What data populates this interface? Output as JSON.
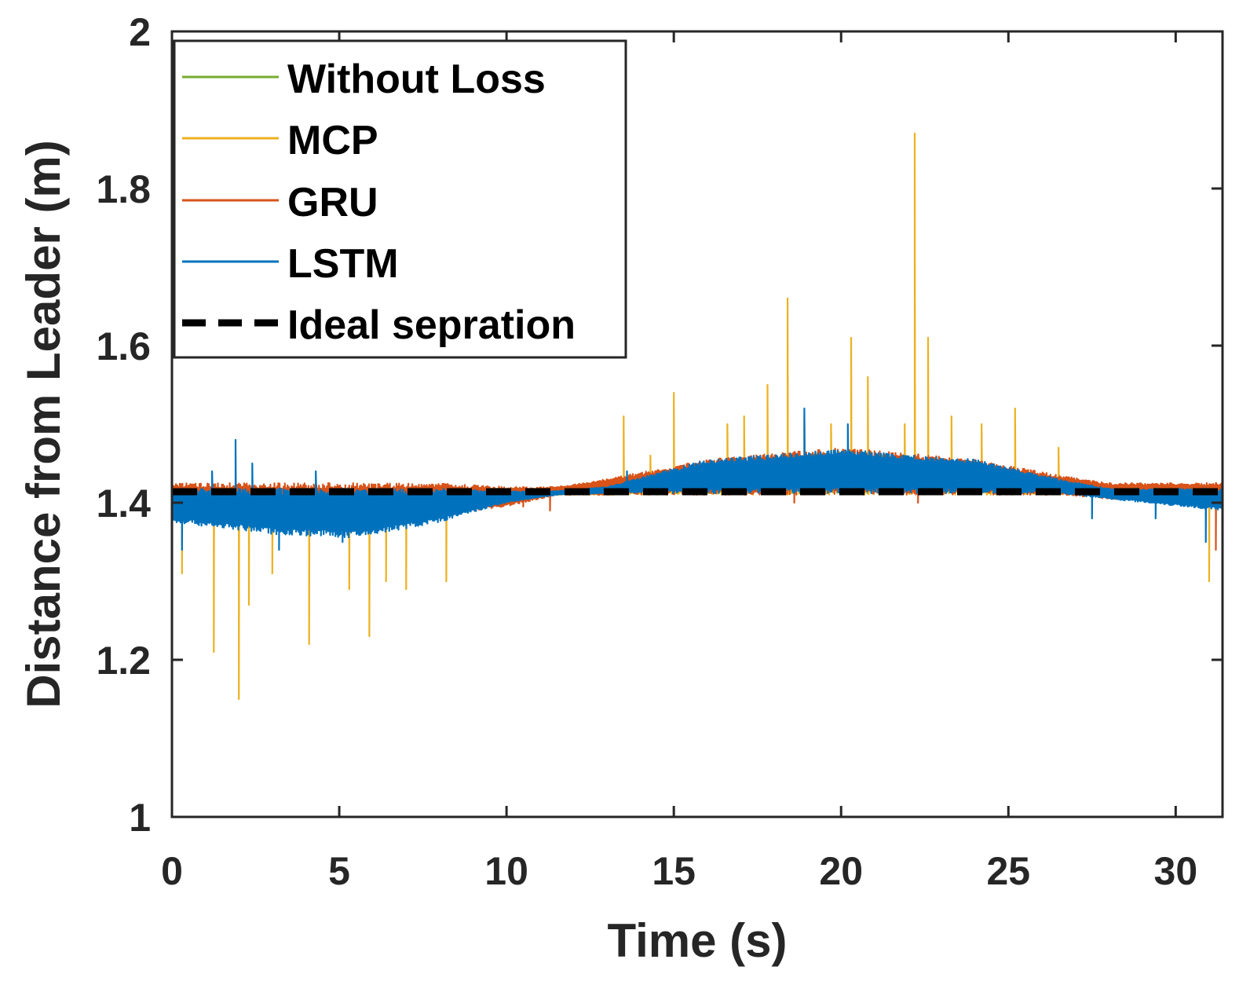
{
  "chart_data": {
    "type": "line",
    "title": "",
    "xlabel": "Time (s)",
    "ylabel": "Distance from Leader (m)",
    "xlim": [
      0,
      31.4
    ],
    "ylim": [
      1,
      2
    ],
    "xticks": [
      "0",
      "5",
      "10",
      "15",
      "20",
      "25",
      "30"
    ],
    "xtick_values": [
      0,
      5,
      10,
      15,
      20,
      25,
      30
    ],
    "yticks": [
      "1",
      "1.2",
      "1.4",
      "1.6",
      "1.8",
      "2"
    ],
    "ytick_values": [
      1,
      1.2,
      1.4,
      1.6,
      1.8,
      2
    ],
    "grid": false,
    "legend_position": "top-left",
    "baseline": 1.414,
    "series": [
      {
        "name": "Without Loss",
        "color": "#77AC30",
        "envelope": {
          "t": [
            0,
            3,
            5.5,
            8,
            10,
            11.5,
            13,
            16,
            20,
            24,
            26.5,
            28,
            31.4
          ],
          "upper": [
            1.418,
            1.418,
            1.418,
            1.418,
            1.418,
            1.418,
            1.42,
            1.44,
            1.455,
            1.44,
            1.425,
            1.42,
            1.418
          ],
          "lower": [
            1.38,
            1.37,
            1.37,
            1.39,
            1.41,
            1.415,
            1.415,
            1.412,
            1.412,
            1.412,
            1.412,
            1.41,
            1.4
          ]
        },
        "spikes": [
          [
            2.0,
            1.37
          ],
          [
            13.5,
            1.43
          ],
          [
            30.9,
            1.38
          ]
        ]
      },
      {
        "name": "MCP",
        "color": "#EDB120",
        "envelope": {
          "t": [
            0,
            3,
            5.5,
            8,
            10,
            11.5,
            13,
            16,
            20,
            24,
            26.5,
            28,
            31.4
          ],
          "upper": [
            1.415,
            1.415,
            1.415,
            1.415,
            1.415,
            1.415,
            1.42,
            1.45,
            1.465,
            1.45,
            1.43,
            1.418,
            1.415
          ],
          "lower": [
            1.385,
            1.375,
            1.37,
            1.385,
            1.405,
            1.41,
            1.41,
            1.41,
            1.41,
            1.41,
            1.41,
            1.41,
            1.405
          ]
        },
        "spikes": [
          [
            0.3,
            1.31
          ],
          [
            1.25,
            1.21
          ],
          [
            2.0,
            1.15
          ],
          [
            2.3,
            1.27
          ],
          [
            3.0,
            1.31
          ],
          [
            4.1,
            1.22
          ],
          [
            5.3,
            1.29
          ],
          [
            5.9,
            1.23
          ],
          [
            6.4,
            1.3
          ],
          [
            7.0,
            1.29
          ],
          [
            8.2,
            1.3
          ],
          [
            13.5,
            1.51
          ],
          [
            14.3,
            1.46
          ],
          [
            15.0,
            1.54
          ],
          [
            16.6,
            1.5
          ],
          [
            17.1,
            1.51
          ],
          [
            17.8,
            1.55
          ],
          [
            18.4,
            1.66
          ],
          [
            18.9,
            1.51
          ],
          [
            19.7,
            1.5
          ],
          [
            20.3,
            1.61
          ],
          [
            20.8,
            1.56
          ],
          [
            21.9,
            1.5
          ],
          [
            22.2,
            1.87
          ],
          [
            22.6,
            1.61
          ],
          [
            23.3,
            1.51
          ],
          [
            24.2,
            1.5
          ],
          [
            25.2,
            1.52
          ],
          [
            26.5,
            1.47
          ],
          [
            31.0,
            1.3
          ]
        ]
      },
      {
        "name": "GRU",
        "color": "#D95319",
        "envelope": {
          "t": [
            0,
            3,
            5.5,
            8,
            10,
            11.5,
            13,
            16,
            20,
            24,
            26.5,
            28,
            31.4
          ],
          "upper": [
            1.425,
            1.425,
            1.425,
            1.425,
            1.42,
            1.42,
            1.43,
            1.455,
            1.47,
            1.455,
            1.435,
            1.425,
            1.425
          ],
          "lower": [
            1.385,
            1.375,
            1.37,
            1.385,
            1.395,
            1.41,
            1.41,
            1.41,
            1.41,
            1.41,
            1.41,
            1.405,
            1.4
          ]
        },
        "spikes": [
          [
            10.5,
            1.395
          ],
          [
            11.3,
            1.39
          ],
          [
            18.6,
            1.4
          ],
          [
            22.3,
            1.4
          ],
          [
            31.2,
            1.34
          ]
        ]
      },
      {
        "name": "LSTM",
        "color": "#0072BD",
        "envelope": {
          "t": [
            0,
            3,
            5.5,
            8,
            10,
            11.5,
            13,
            16,
            20,
            24,
            26.5,
            28,
            31.4
          ],
          "upper": [
            1.418,
            1.418,
            1.418,
            1.418,
            1.415,
            1.415,
            1.42,
            1.455,
            1.468,
            1.455,
            1.43,
            1.418,
            1.418
          ],
          "lower": [
            1.375,
            1.36,
            1.355,
            1.375,
            1.4,
            1.41,
            1.412,
            1.412,
            1.412,
            1.412,
            1.412,
            1.405,
            1.39
          ]
        },
        "spikes": [
          [
            0.3,
            1.34
          ],
          [
            1.2,
            1.44
          ],
          [
            1.9,
            1.48
          ],
          [
            2.4,
            1.45
          ],
          [
            3.2,
            1.34
          ],
          [
            4.3,
            1.44
          ],
          [
            5.1,
            1.35
          ],
          [
            13.6,
            1.44
          ],
          [
            18.9,
            1.52
          ],
          [
            20.2,
            1.5
          ],
          [
            27.5,
            1.38
          ],
          [
            29.4,
            1.38
          ],
          [
            30.9,
            1.35
          ]
        ]
      }
    ],
    "reference_line": {
      "name": "Ideal sepration",
      "value": 1.414,
      "color": "#000000",
      "style": "dashed"
    }
  }
}
